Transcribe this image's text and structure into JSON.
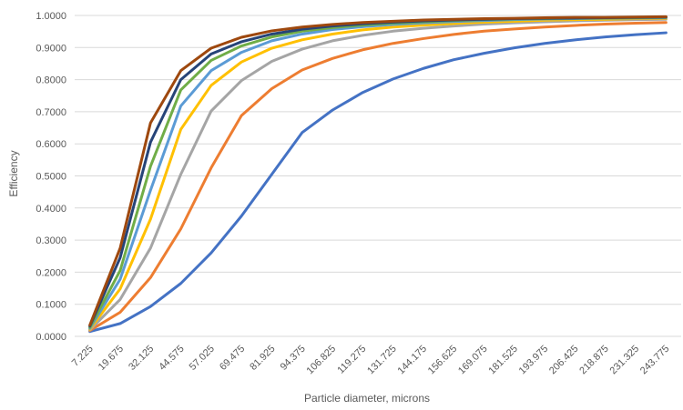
{
  "chart_data": {
    "type": "line",
    "title": "",
    "xlabel": "Particle diameter, microns",
    "ylabel": "Efficiency",
    "ylim": [
      0,
      1
    ],
    "y_ticks": [
      "0.0000",
      "0.1000",
      "0.2000",
      "0.3000",
      "0.4000",
      "0.5000",
      "0.6000",
      "0.7000",
      "0.8000",
      "0.9000",
      "1.0000"
    ],
    "grid": true,
    "legend": "none",
    "categories": [
      "7.225",
      "19.675",
      "32.125",
      "44.575",
      "57.025",
      "69.475",
      "81.925",
      "94.375",
      "106.825",
      "119.275",
      "131.725",
      "144.175",
      "156.625",
      "169.075",
      "181.525",
      "193.975",
      "206.425",
      "218.875",
      "231.325",
      "243.775"
    ],
    "series": [
      {
        "color": "#4472C4",
        "values": [
          0.015,
          0.04,
          0.093,
          0.165,
          0.26,
          0.375,
          0.505,
          0.635,
          0.705,
          0.76,
          0.802,
          0.835,
          0.862,
          0.882,
          0.899,
          0.913,
          0.924,
          0.933,
          0.94,
          0.946
        ]
      },
      {
        "color": "#ED7D31",
        "values": [
          0.018,
          0.075,
          0.183,
          0.335,
          0.525,
          0.688,
          0.772,
          0.83,
          0.866,
          0.893,
          0.913,
          0.928,
          0.941,
          0.951,
          0.958,
          0.964,
          0.969,
          0.973,
          0.976,
          0.978
        ]
      },
      {
        "color": "#A5A5A5",
        "values": [
          0.02,
          0.115,
          0.275,
          0.505,
          0.702,
          0.797,
          0.857,
          0.895,
          0.921,
          0.938,
          0.951,
          0.96,
          0.967,
          0.973,
          0.977,
          0.98,
          0.983,
          0.985,
          0.987,
          0.988
        ]
      },
      {
        "color": "#FFC000",
        "values": [
          0.022,
          0.148,
          0.365,
          0.645,
          0.782,
          0.855,
          0.898,
          0.924,
          0.942,
          0.955,
          0.964,
          0.97,
          0.975,
          0.979,
          0.982,
          0.985,
          0.987,
          0.988,
          0.99,
          0.991
        ]
      },
      {
        "color": "#5B9BD5",
        "values": [
          0.025,
          0.178,
          0.455,
          0.718,
          0.828,
          0.885,
          0.921,
          0.942,
          0.956,
          0.965,
          0.972,
          0.977,
          0.981,
          0.984,
          0.987,
          0.989,
          0.99,
          0.991,
          0.992,
          0.993
        ]
      },
      {
        "color": "#70AD47",
        "values": [
          0.028,
          0.205,
          0.53,
          0.768,
          0.86,
          0.905,
          0.933,
          0.951,
          0.962,
          0.97,
          0.976,
          0.98,
          0.984,
          0.987,
          0.989,
          0.99,
          0.991,
          0.992,
          0.993,
          0.994
        ]
      },
      {
        "color": "#264478",
        "values": [
          0.032,
          0.245,
          0.605,
          0.8,
          0.88,
          0.918,
          0.942,
          0.957,
          0.967,
          0.974,
          0.979,
          0.983,
          0.986,
          0.988,
          0.99,
          0.991,
          0.992,
          0.993,
          0.994,
          0.995
        ]
      },
      {
        "color": "#9E480E",
        "values": [
          0.035,
          0.275,
          0.665,
          0.828,
          0.898,
          0.932,
          0.952,
          0.964,
          0.972,
          0.978,
          0.982,
          0.986,
          0.988,
          0.99,
          0.991,
          0.993,
          0.994,
          0.994,
          0.995,
          0.996
        ]
      }
    ]
  }
}
